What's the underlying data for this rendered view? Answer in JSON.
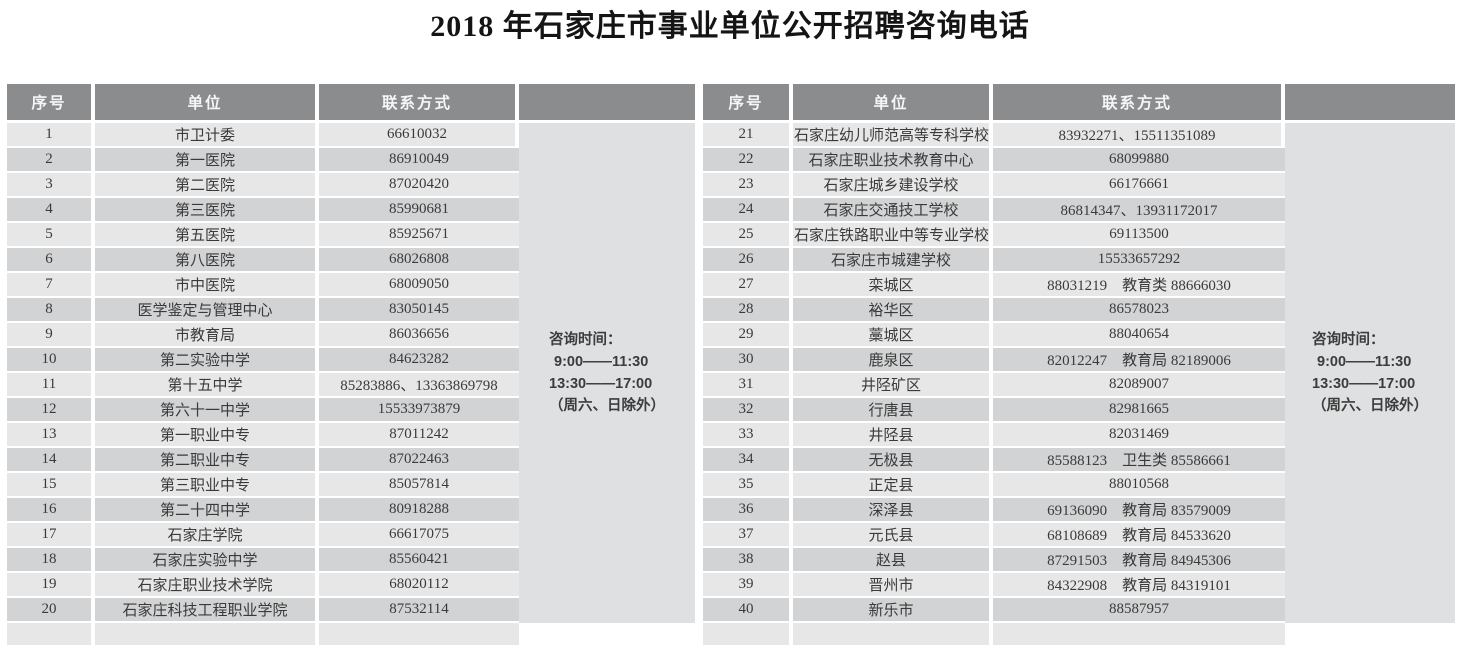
{
  "title": "2018 年石家庄市事业单位公开招聘咨询电话",
  "consultation": {
    "label": "咨询时间：",
    "morning": "9:00——11:30",
    "afternoon": "13:30——17:00",
    "note": "（周六、日除外）"
  },
  "colors": {
    "header_bg": "#8a8c8e",
    "header_text": "#f6f6f6",
    "row_odd": "#e7e7e8",
    "row_even": "#d2d3d4",
    "merged_cell_bg": "#dfe0e1",
    "body_text": "#3a3a3a"
  },
  "tables": [
    {
      "headers": [
        "序号",
        "单位",
        "联系方式",
        ""
      ],
      "rows": [
        [
          "1",
          "市卫计委",
          "66610032"
        ],
        [
          "2",
          "第一医院",
          "86910049"
        ],
        [
          "3",
          "第二医院",
          "87020420"
        ],
        [
          "4",
          "第三医院",
          "85990681"
        ],
        [
          "5",
          "第五医院",
          "85925671"
        ],
        [
          "6",
          "第八医院",
          "68026808"
        ],
        [
          "7",
          "市中医院",
          "68009050"
        ],
        [
          "8",
          "医学鉴定与管理中心",
          "83050145"
        ],
        [
          "9",
          "市教育局",
          "86036656"
        ],
        [
          "10",
          "第二实验中学",
          "84623282"
        ],
        [
          "11",
          "第十五中学",
          "85283886、13363869798"
        ],
        [
          "12",
          "第六十一中学",
          "15533973879"
        ],
        [
          "13",
          "第一职业中专",
          "87011242"
        ],
        [
          "14",
          "第二职业中专",
          "87022463"
        ],
        [
          "15",
          "第三职业中专",
          "85057814"
        ],
        [
          "16",
          "第二十四中学",
          "80918288"
        ],
        [
          "17",
          "石家庄学院",
          "66617075"
        ],
        [
          "18",
          "石家庄实验中学",
          "85560421"
        ],
        [
          "19",
          "石家庄职业技术学院",
          "68020112"
        ],
        [
          "20",
          "石家庄科技工程职业学院",
          "87532114"
        ]
      ]
    },
    {
      "headers": [
        "序号",
        "单位",
        "联系方式",
        ""
      ],
      "rows": [
        [
          "21",
          "石家庄幼儿师范高等专科学校",
          "83932271、15511351089"
        ],
        [
          "22",
          "石家庄职业技术教育中心",
          "68099880"
        ],
        [
          "23",
          "石家庄城乡建设学校",
          "66176661"
        ],
        [
          "24",
          "石家庄交通技工学校",
          "86814347、13931172017"
        ],
        [
          "25",
          "石家庄铁路职业中等专业学校",
          "69113500"
        ],
        [
          "26",
          "石家庄市城建学校",
          "15533657292"
        ],
        [
          "27",
          "栾城区",
          "88031219　教育类 88666030"
        ],
        [
          "28",
          "裕华区",
          "86578023"
        ],
        [
          "29",
          "藁城区",
          "88040654"
        ],
        [
          "30",
          "鹿泉区",
          "82012247　教育局 82189006"
        ],
        [
          "31",
          "井陉矿区",
          "82089007"
        ],
        [
          "32",
          "行唐县",
          "82981665"
        ],
        [
          "33",
          "井陉县",
          "82031469"
        ],
        [
          "34",
          "无极县",
          "85588123　卫生类 85586661"
        ],
        [
          "35",
          "正定县",
          "88010568"
        ],
        [
          "36",
          "深泽县",
          "69136090　教育局 83579009"
        ],
        [
          "37",
          "元氏县",
          "68108689　教育局 84533620"
        ],
        [
          "38",
          "赵县",
          "87291503　教育局 84945306"
        ],
        [
          "39",
          "晋州市",
          "84322908　教育局 84319101"
        ],
        [
          "40",
          "新乐市",
          "88587957"
        ]
      ]
    }
  ]
}
